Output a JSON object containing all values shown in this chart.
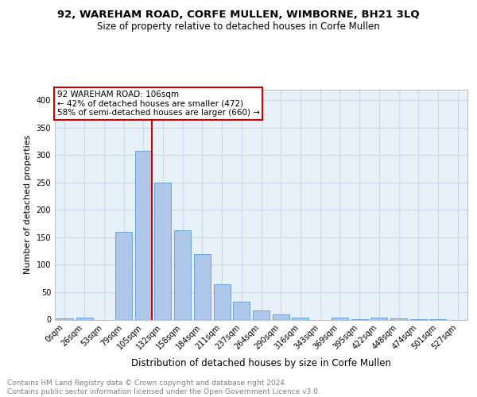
{
  "title": "92, WAREHAM ROAD, CORFE MULLEN, WIMBORNE, BH21 3LQ",
  "subtitle": "Size of property relative to detached houses in Corfe Mullen",
  "xlabel": "Distribution of detached houses by size in Corfe Mullen",
  "ylabel": "Number of detached properties",
  "bin_labels": [
    "0sqm",
    "26sqm",
    "53sqm",
    "79sqm",
    "105sqm",
    "132sqm",
    "158sqm",
    "184sqm",
    "211sqm",
    "237sqm",
    "264sqm",
    "290sqm",
    "316sqm",
    "343sqm",
    "369sqm",
    "395sqm",
    "422sqm",
    "448sqm",
    "474sqm",
    "501sqm",
    "527sqm"
  ],
  "bar_heights": [
    2,
    4,
    0,
    160,
    308,
    250,
    163,
    120,
    65,
    33,
    16,
    10,
    4,
    0,
    3,
    1,
    3,
    2,
    1,
    1,
    0
  ],
  "bar_color": "#aec6e8",
  "bar_edge_color": "#5b9bd5",
  "vline_x_index": 4,
  "vline_color": "#cc0000",
  "annotation_lines": [
    "92 WAREHAM ROAD: 106sqm",
    "← 42% of detached houses are smaller (472)",
    "58% of semi-detached houses are larger (660) →"
  ],
  "annotation_box_color": "#cc0000",
  "ylim": [
    0,
    420
  ],
  "yticks": [
    0,
    50,
    100,
    150,
    200,
    250,
    300,
    350,
    400
  ],
  "grid_color": "#c8d8e8",
  "background_color": "#e8f0f8",
  "footer_text": "Contains HM Land Registry data © Crown copyright and database right 2024.\nContains public sector information licensed under the Open Government Licence v3.0.",
  "title_fontsize": 9.5,
  "subtitle_fontsize": 8.5,
  "xlabel_fontsize": 8.5,
  "ylabel_fontsize": 8,
  "tick_fontsize": 7,
  "annotation_fontsize": 7.5,
  "footer_fontsize": 6.5
}
